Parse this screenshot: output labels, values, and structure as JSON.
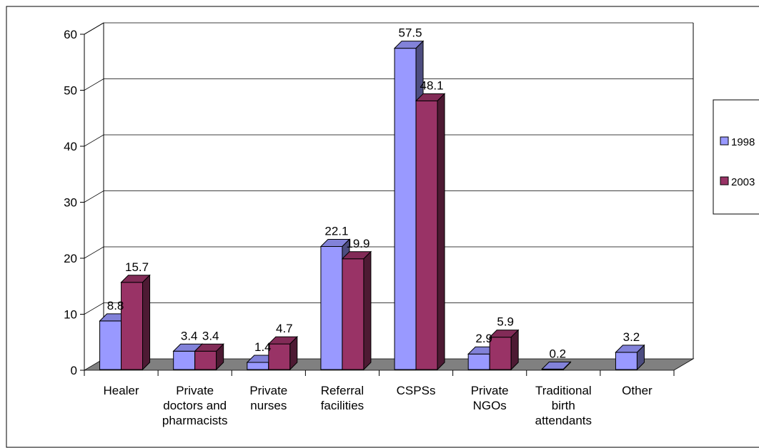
{
  "chart_data": {
    "type": "bar",
    "title": "",
    "xlabel": "",
    "ylabel": "",
    "ylim": [
      0,
      60
    ],
    "yticks": [
      0,
      10,
      20,
      30,
      40,
      50,
      60
    ],
    "grid": true,
    "legend_position": "right",
    "categories": [
      [
        "Healer"
      ],
      [
        "Private",
        "doctors and",
        "pharmacists"
      ],
      [
        "Private",
        "nurses"
      ],
      [
        "Referral",
        "facilities"
      ],
      [
        "CSPSs"
      ],
      [
        "Private",
        "NGOs"
      ],
      [
        "Traditional",
        "birth",
        "attendants"
      ],
      [
        "Other"
      ]
    ],
    "series": [
      {
        "name": "1998",
        "color": "#9999ff",
        "values": [
          8.8,
          3.4,
          1.4,
          22.1,
          57.5,
          2.9,
          0.2,
          3.2
        ],
        "labels": [
          "8.8",
          "3.4",
          "1.4",
          "22.1",
          "57.5",
          "2.9",
          "0.2",
          "3.2"
        ]
      },
      {
        "name": "2003",
        "color": "#993366",
        "values": [
          15.7,
          3.4,
          4.7,
          19.9,
          48.1,
          5.9,
          null,
          null
        ],
        "labels": [
          "15.7",
          "3.4",
          "4.7",
          "19.9",
          "48.1",
          "5.9",
          "",
          ""
        ]
      }
    ]
  }
}
